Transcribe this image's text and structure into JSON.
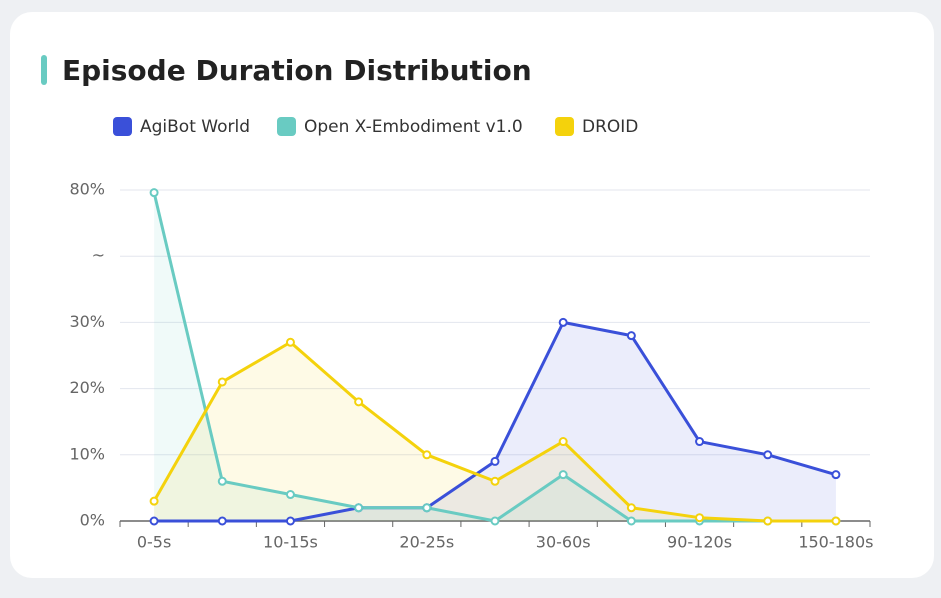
{
  "chart_data": {
    "type": "line",
    "title": "Episode Duration Distribution",
    "categories": [
      "0-5s",
      null,
      "10-15s",
      null,
      "20-25s",
      null,
      "30-60s",
      null,
      "90-120s",
      null,
      "150-180s"
    ],
    "series": [
      {
        "name": "AgiBot World",
        "color": "#3a50d9",
        "values": [
          0,
          0,
          0,
          2,
          2,
          9,
          30,
          28,
          12,
          10,
          7
        ]
      },
      {
        "name": "Open X-Embodiment v1.0",
        "color": "#69cbc2",
        "values": [
          79,
          6,
          4,
          2,
          2,
          0,
          7,
          0,
          0,
          0,
          0
        ]
      },
      {
        "name": "DROID",
        "color": "#f4d20c",
        "values": [
          3,
          21,
          27,
          18,
          10,
          6,
          12,
          2,
          0.5,
          0,
          0
        ]
      }
    ],
    "ylim": [
      0,
      80
    ],
    "yticks": [
      {
        "value": 0,
        "label": "0%"
      },
      {
        "value": 10,
        "label": "10%"
      },
      {
        "value": 20,
        "label": "20%"
      },
      {
        "value": 30,
        "label": "30%"
      },
      {
        "label": "~"
      },
      {
        "value": 80,
        "label": "80%"
      }
    ],
    "grid": true,
    "area": true
  }
}
